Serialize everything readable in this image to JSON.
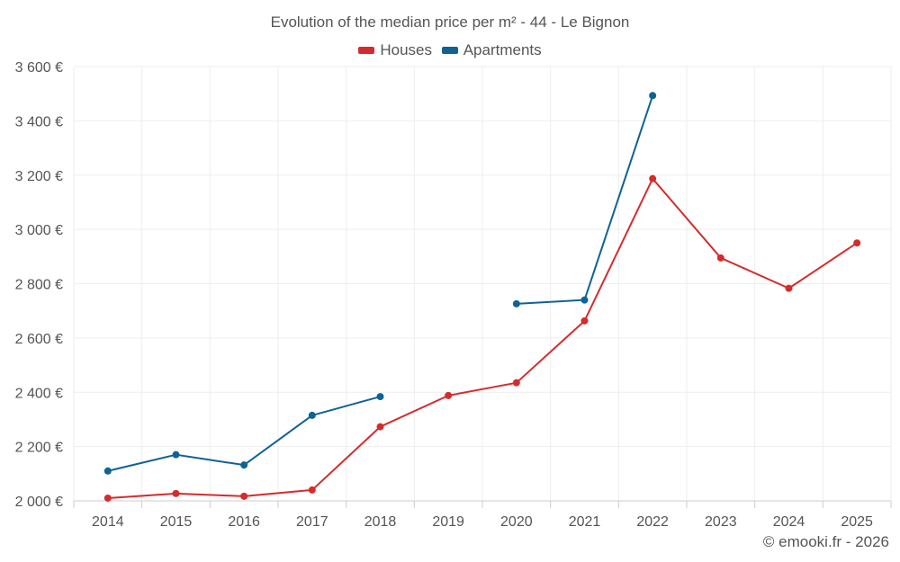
{
  "colors": {
    "houses": "#d42c2c",
    "apartments": "#0f6294",
    "grid": "#eeeeee",
    "axis": "#cccccc",
    "text": "#555555"
  },
  "legend": {
    "houses": "Houses",
    "apartments": "Apartments"
  },
  "credit": "© emooki.fr - 2026",
  "chart_data": {
    "type": "line",
    "title": "Evolution of the median price per m² - 44 - Le Bignon",
    "xlabel": "",
    "ylabel": "",
    "legend_position": "top-center",
    "grid": true,
    "categories": [
      "2014",
      "2015",
      "2016",
      "2017",
      "2018",
      "2019",
      "2020",
      "2021",
      "2022",
      "2023",
      "2024",
      "2025"
    ],
    "ylim": [
      2000,
      3600
    ],
    "yticks": [
      2000,
      2200,
      2400,
      2600,
      2800,
      3000,
      3200,
      3400,
      3600
    ],
    "ytick_labels": [
      "2 000 €",
      "2 200 €",
      "2 400 €",
      "2 600 €",
      "2 800 €",
      "3 000 €",
      "3 200 €",
      "3 400 €",
      "3 600 €"
    ],
    "series": [
      {
        "name": "Houses",
        "key": "houses",
        "values": [
          2010,
          2027,
          2017,
          2040,
          2273,
          2388,
          2435,
          2663,
          3187,
          2895,
          2783,
          2950
        ]
      },
      {
        "name": "Apartments",
        "key": "apartments",
        "values": [
          2110,
          2170,
          2132,
          2315,
          2384,
          null,
          2726,
          2740,
          3493,
          null,
          null,
          null
        ]
      }
    ]
  }
}
